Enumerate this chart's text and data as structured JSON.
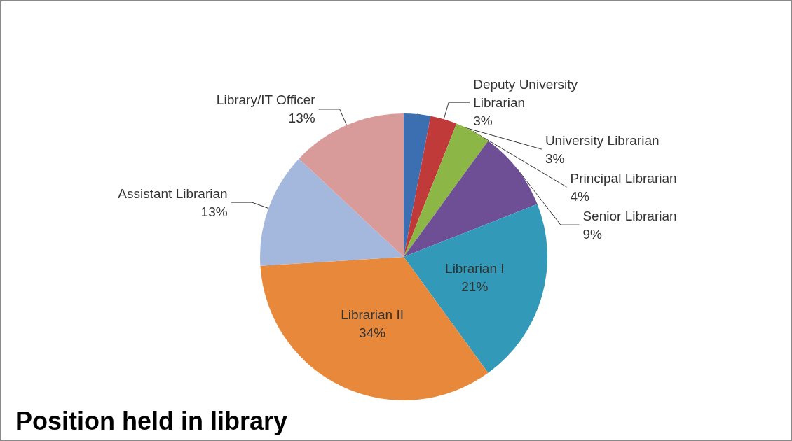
{
  "chart_data": {
    "type": "pie",
    "title": "Position held in library",
    "categories": [
      "University Librarian",
      "Deputy University Librarian",
      "Principal Librarian",
      "Senior Librarian",
      "Librarian I",
      "Librarian II",
      "Assistant Librarian",
      "Library/IT Officer"
    ],
    "values": [
      3,
      3,
      4,
      9,
      21,
      34,
      13,
      13
    ],
    "colors": [
      "#3b6fb1",
      "#c13a3a",
      "#8cb746",
      "#6e4e95",
      "#3399b9",
      "#e8883a",
      "#a4b8de",
      "#d99b99"
    ],
    "value_labels": [
      "3%",
      "3%",
      "4%",
      "9%",
      "21%",
      "34%",
      "13%",
      "13%"
    ],
    "legend": false
  }
}
